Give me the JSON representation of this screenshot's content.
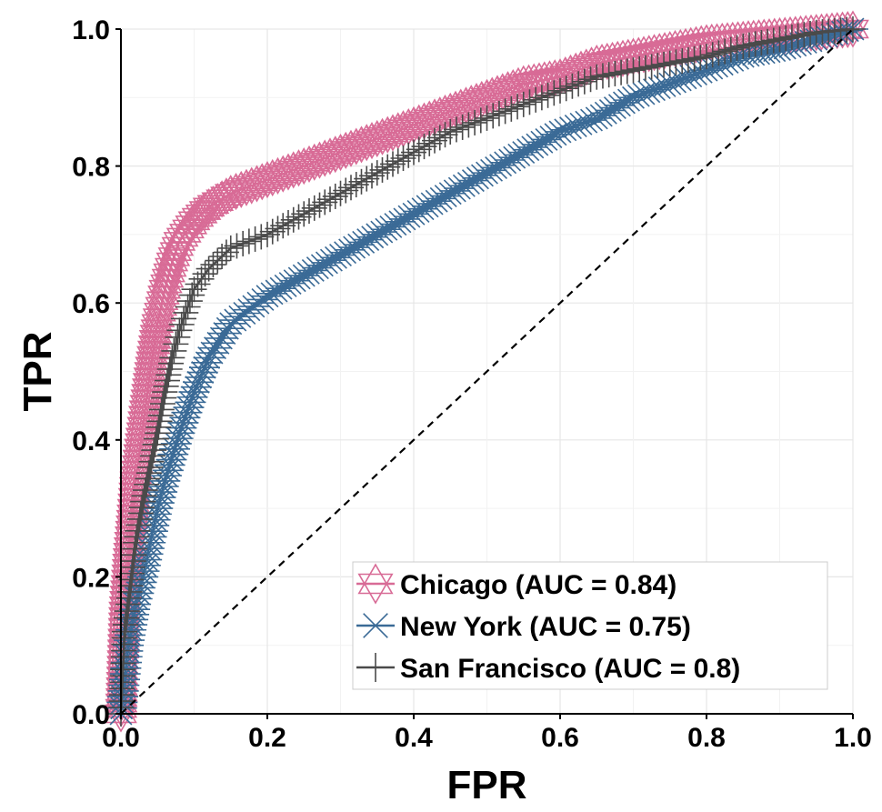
{
  "chart_data": {
    "type": "line",
    "title": "",
    "xlabel": "FPR",
    "ylabel": "TPR",
    "xlim": [
      0,
      1
    ],
    "ylim": [
      0,
      1
    ],
    "x_ticks": [
      "0.0",
      "0.2",
      "0.4",
      "0.6",
      "0.8",
      "1.0"
    ],
    "y_ticks": [
      "0.0",
      "0.2",
      "0.4",
      "0.6",
      "0.8",
      "1.0"
    ],
    "grid": true,
    "legend_position": "bottom-right",
    "reference_line": {
      "style": "dashed",
      "color": "#000000",
      "x": [
        0,
        1
      ],
      "y": [
        0,
        1
      ]
    },
    "series": [
      {
        "name": "Chicago",
        "label": "Chicago (AUC = 0.84)",
        "auc": 0.84,
        "color": "#D86B96",
        "marker": "hexagram",
        "x": [
          0,
          0.005,
          0.01,
          0.02,
          0.03,
          0.04,
          0.05,
          0.06,
          0.07,
          0.08,
          0.1,
          0.12,
          0.15,
          0.2,
          0.25,
          0.3,
          0.35,
          0.4,
          0.45,
          0.5,
          0.55,
          0.6,
          0.65,
          0.7,
          0.75,
          0.8,
          0.85,
          0.9,
          0.95,
          1.0
        ],
        "y": [
          0,
          0.15,
          0.22,
          0.34,
          0.42,
          0.5,
          0.57,
          0.62,
          0.66,
          0.69,
          0.72,
          0.74,
          0.76,
          0.78,
          0.8,
          0.82,
          0.84,
          0.86,
          0.88,
          0.9,
          0.92,
          0.93,
          0.95,
          0.96,
          0.97,
          0.98,
          0.985,
          0.99,
          0.995,
          1.0
        ]
      },
      {
        "name": "New York",
        "label": "New York (AUC = 0.75)",
        "auc": 0.75,
        "color": "#3A6A96",
        "marker": "asterisk",
        "x": [
          0,
          0.005,
          0.01,
          0.02,
          0.03,
          0.04,
          0.05,
          0.06,
          0.08,
          0.1,
          0.12,
          0.15,
          0.2,
          0.25,
          0.3,
          0.35,
          0.4,
          0.45,
          0.5,
          0.55,
          0.6,
          0.65,
          0.7,
          0.75,
          0.8,
          0.85,
          0.9,
          0.95,
          1.0
        ],
        "y": [
          0,
          0.05,
          0.1,
          0.16,
          0.2,
          0.25,
          0.3,
          0.34,
          0.41,
          0.47,
          0.52,
          0.57,
          0.61,
          0.64,
          0.67,
          0.7,
          0.73,
          0.76,
          0.79,
          0.82,
          0.85,
          0.87,
          0.9,
          0.92,
          0.94,
          0.96,
          0.97,
          0.985,
          1.0
        ]
      },
      {
        "name": "San Francisco",
        "label": "San Francisco (AUC = 0.8)",
        "auc": 0.8,
        "color": "#4A4A4A",
        "marker": "plus",
        "x": [
          0,
          0.005,
          0.01,
          0.02,
          0.03,
          0.04,
          0.05,
          0.06,
          0.07,
          0.08,
          0.1,
          0.12,
          0.15,
          0.2,
          0.25,
          0.3,
          0.35,
          0.4,
          0.45,
          0.5,
          0.55,
          0.6,
          0.65,
          0.7,
          0.75,
          0.8,
          0.85,
          0.9,
          0.95,
          1.0
        ],
        "y": [
          0,
          0.12,
          0.16,
          0.25,
          0.31,
          0.36,
          0.41,
          0.47,
          0.52,
          0.56,
          0.62,
          0.65,
          0.68,
          0.7,
          0.73,
          0.76,
          0.79,
          0.82,
          0.85,
          0.87,
          0.89,
          0.91,
          0.93,
          0.94,
          0.95,
          0.96,
          0.975,
          0.985,
          0.995,
          1.0
        ]
      }
    ]
  }
}
